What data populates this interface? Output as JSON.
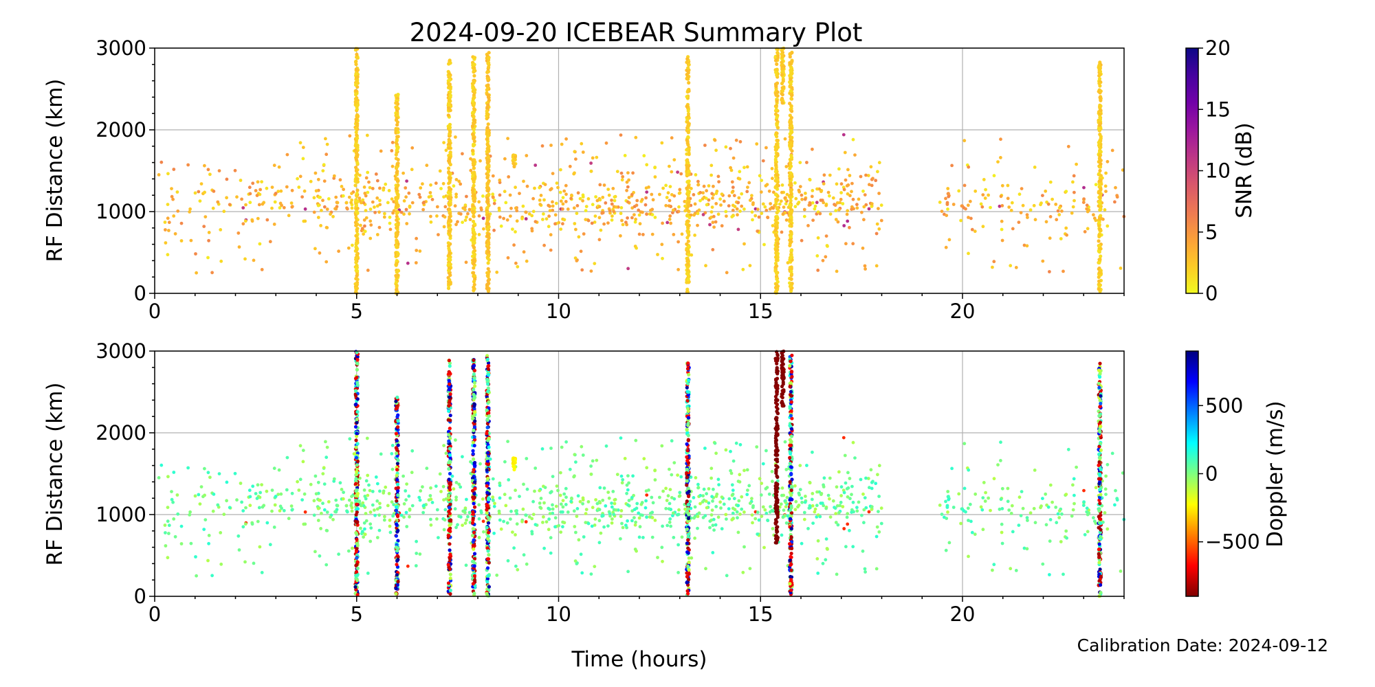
{
  "figure": {
    "title": "2024-09-20 ICEBEAR Summary Plot",
    "xlabel": "Time (hours)",
    "calibration_note": "Calibration Date: 2024-09-12"
  },
  "chart_data": [
    {
      "type": "scatter",
      "name": "snr-panel",
      "title": "2024-09-20 ICEBEAR Summary Plot",
      "xlabel": "",
      "ylabel": "RF Distance (km)",
      "xlim": [
        0,
        24
      ],
      "ylim": [
        0,
        3000
      ],
      "xticks": [
        0,
        5,
        10,
        15,
        20
      ],
      "xtick_labels": [
        "0",
        "5",
        "10",
        "15",
        "20"
      ],
      "yticks": [
        0,
        1000,
        2000,
        3000
      ],
      "ytick_labels": [
        "0",
        "1000",
        "2000",
        "3000"
      ],
      "grid": true,
      "color_variable": "snr",
      "colorbar": {
        "label": "SNR (dB)",
        "colormap": "plasma_r",
        "range": [
          0,
          20
        ],
        "ticks": [
          0,
          5,
          10,
          15,
          20
        ],
        "tick_labels": [
          "0",
          "5",
          "10",
          "15",
          "20"
        ],
        "stops": [
          "#f0f921",
          "#fdca26",
          "#fb9f3a",
          "#ed7953",
          "#d8576b",
          "#bd3786",
          "#9c179e",
          "#7201a8",
          "#46039f",
          "#0d0887"
        ]
      },
      "column_events": [
        {
          "x": 5.0,
          "y_range": [
            0,
            3000
          ],
          "snr": 1
        },
        {
          "x": 6.0,
          "y_range": [
            0,
            2450
          ],
          "snr": 1
        },
        {
          "x": 7.3,
          "y_range": [
            0,
            2900
          ],
          "snr": 1
        },
        {
          "x": 7.9,
          "y_range": [
            0,
            2900
          ],
          "snr": 1
        },
        {
          "x": 8.25,
          "y_range": [
            0,
            2950
          ],
          "snr": 1.5
        },
        {
          "x": 8.9,
          "y_range": [
            1550,
            1700
          ],
          "snr": 1
        },
        {
          "x": 13.2,
          "y_range": [
            0,
            2900
          ],
          "snr": 1
        },
        {
          "x": 15.4,
          "y_range": [
            0,
            3000
          ],
          "snr": 1
        },
        {
          "x": 15.55,
          "y_range": [
            2300,
            3000
          ],
          "snr": 1
        },
        {
          "x": 15.75,
          "y_range": [
            0,
            2950
          ],
          "snr": 1
        },
        {
          "x": 23.4,
          "y_range": [
            0,
            2850
          ],
          "snr": 1
        }
      ],
      "background_scatter": {
        "description_of_data": "dense sporadic echoes",
        "x_range": [
          0,
          24
        ],
        "gap": [
          18.0,
          19.4
        ],
        "y_range": [
          250,
          1950
        ],
        "core_y": [
          800,
          1400
        ],
        "typical_snr": [
          0.5,
          6
        ],
        "peak_snr": 12
      }
    },
    {
      "type": "scatter",
      "name": "doppler-panel",
      "title": "",
      "xlabel": "Time (hours)",
      "ylabel": "RF Distance (km)",
      "xlim": [
        0,
        24
      ],
      "ylim": [
        0,
        3000
      ],
      "xticks": [
        0,
        5,
        10,
        15,
        20
      ],
      "xtick_labels": [
        "0",
        "5",
        "10",
        "15",
        "20"
      ],
      "yticks": [
        0,
        1000,
        2000,
        3000
      ],
      "ytick_labels": [
        "0",
        "1000",
        "2000",
        "3000"
      ],
      "grid": true,
      "color_variable": "doppler",
      "colorbar": {
        "label": "Doppler (m/s)",
        "colormap": "jet_r",
        "range": [
          -900,
          900
        ],
        "ticks": [
          -500,
          0,
          500
        ],
        "tick_labels": [
          "−500",
          "0",
          "500"
        ],
        "stops": [
          "#7f0000",
          "#ff0000",
          "#ff7f00",
          "#ffff00",
          "#7fff7f",
          "#00ffff",
          "#007fff",
          "#0000ff",
          "#00007f"
        ]
      },
      "column_events": [
        {
          "x": 5.0,
          "y_range": [
            0,
            3000
          ],
          "doppler": "mixed"
        },
        {
          "x": 6.0,
          "y_range": [
            0,
            2450
          ],
          "doppler": "mixed"
        },
        {
          "x": 7.3,
          "y_range": [
            0,
            2900
          ],
          "doppler": "mixed"
        },
        {
          "x": 7.9,
          "y_range": [
            0,
            2900
          ],
          "doppler": "mixed"
        },
        {
          "x": 8.25,
          "y_range": [
            0,
            2950
          ],
          "doppler": "mixed"
        },
        {
          "x": 8.9,
          "y_range": [
            1550,
            1700
          ],
          "doppler": -250
        },
        {
          "x": 13.2,
          "y_range": [
            0,
            2900
          ],
          "doppler": "mixed"
        },
        {
          "x": 15.4,
          "y_range": [
            650,
            3000
          ],
          "doppler": -900
        },
        {
          "x": 15.55,
          "y_range": [
            2300,
            3000
          ],
          "doppler": -900
        },
        {
          "x": 15.75,
          "y_range": [
            0,
            2950
          ],
          "doppler": "mixed"
        },
        {
          "x": 23.4,
          "y_range": [
            0,
            2850
          ],
          "doppler": "mixed"
        }
      ],
      "background_scatter": {
        "description_of_data": "dense sporadic echoes",
        "x_range": [
          0,
          24
        ],
        "gap": [
          18.0,
          19.4
        ],
        "y_range": [
          250,
          1950
        ],
        "core_y": [
          800,
          1400
        ],
        "typical_doppler": [
          -100,
          150
        ]
      }
    }
  ]
}
